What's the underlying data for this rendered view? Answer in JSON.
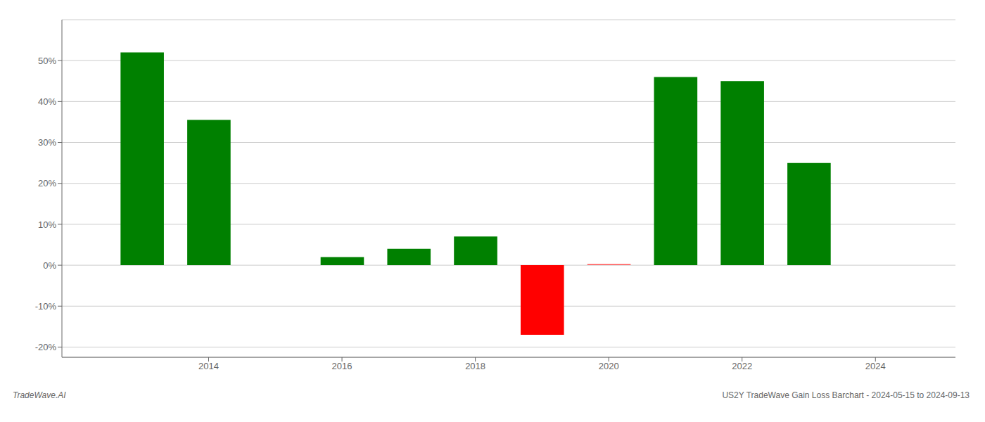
{
  "chart_data": {
    "type": "bar",
    "x": [
      2013,
      2014,
      2016,
      2017,
      2018,
      2019,
      2020,
      2021,
      2022,
      2023
    ],
    "values": [
      0.52,
      0.355,
      0.02,
      0.04,
      0.07,
      -0.17,
      0.003,
      0.46,
      0.45,
      0.25
    ],
    "colors": [
      "#008000",
      "#008000",
      "#008000",
      "#008000",
      "#008000",
      "#ff0000",
      "#ff6666",
      "#008000",
      "#008000",
      "#008000"
    ],
    "xlim": [
      2011.8,
      2025.2
    ],
    "xticks": [
      2014,
      2016,
      2018,
      2020,
      2022,
      2024
    ],
    "ylim": [
      -0.225,
      0.6
    ],
    "yticks": [
      {
        "value": -0.2,
        "label": "-20%"
      },
      {
        "value": -0.1,
        "label": "-10%"
      },
      {
        "value": 0.0,
        "label": "0%"
      },
      {
        "value": 0.1,
        "label": "10%"
      },
      {
        "value": 0.2,
        "label": "20%"
      },
      {
        "value": 0.3,
        "label": "30%"
      },
      {
        "value": 0.4,
        "label": "40%"
      },
      {
        "value": 0.5,
        "label": "50%"
      }
    ],
    "grid": true,
    "annotations": [
      "TradeWave.AI",
      "US2Y TradeWave Gain Loss Barchart - 2024-05-15 to 2024-09-13"
    ]
  }
}
